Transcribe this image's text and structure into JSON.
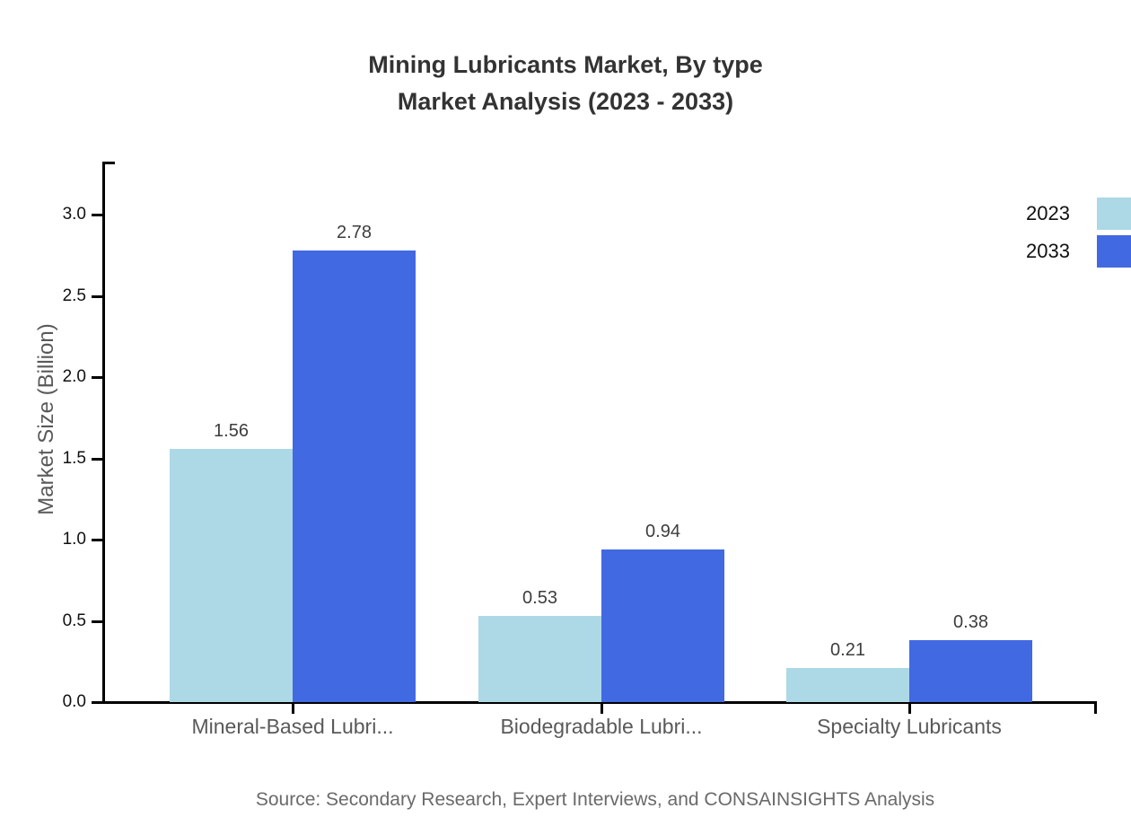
{
  "chart_data": {
    "type": "bar",
    "title": "Mining Lubricants Market, By type",
    "subtitle": "Market Analysis (2023 - 2033)",
    "categories": [
      "Mineral-Based Lubri...",
      "Biodegradable Lubri...",
      "Specialty Lubricants"
    ],
    "series": [
      {
        "name": "2023",
        "color": "#ADD8E6",
        "values": [
          1.56,
          0.53,
          0.21
        ]
      },
      {
        "name": "2033",
        "color": "#4169E1",
        "values": [
          2.78,
          0.94,
          0.38
        ]
      }
    ],
    "ylabel": "Market Size (Billion)",
    "ylim": [
      0,
      3.3
    ],
    "yticks": [
      0.0,
      0.5,
      1.0,
      1.5,
      2.0,
      2.5,
      3.0
    ],
    "grid": false,
    "legend_position": "top-right",
    "value_labels": true,
    "source": "Source: Secondary Research, Expert Interviews, and CONSAINSIGHTS Analysis"
  }
}
